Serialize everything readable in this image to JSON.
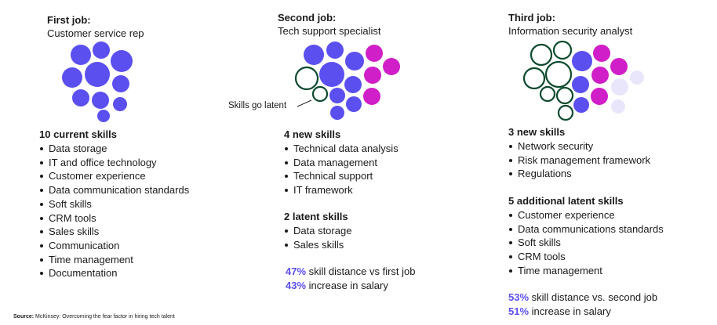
{
  "colors": {
    "skill": "#5b4ff0",
    "new_skill": "#d01ec8",
    "latent_outline": "#0d4a2e",
    "faded": "#e9e6fb",
    "accent_text": "#5b4ff0"
  },
  "jobs": [
    {
      "number": "First job:",
      "role": "Customer service rep",
      "sections": [
        {
          "heading": "10 current skills",
          "items": [
            "Data storage",
            "IT and office technology",
            "Customer experience",
            "Data communication standards",
            "Soft skills",
            "CRM tools",
            "Sales skills",
            "Communication",
            "Time management",
            "Documentation"
          ]
        }
      ],
      "stats": []
    },
    {
      "number": "Second job:",
      "role": "Tech support specialist",
      "latent_label": "Skills go latent",
      "sections": [
        {
          "heading": "4 new skills",
          "items": [
            "Technical data analysis",
            "Data management",
            "Technical support",
            "IT framework"
          ]
        },
        {
          "heading": "2 latent skills",
          "items": [
            "Data storage",
            "Sales skills"
          ]
        }
      ],
      "stats": [
        {
          "value": "47%",
          "text": "skill distance vs first job"
        },
        {
          "value": "43%",
          "text": "increase in salary"
        }
      ]
    },
    {
      "number": "Third job:",
      "role": "Information security analyst",
      "sections": [
        {
          "heading": "3 new skills",
          "items": [
            "Network security",
            "Risk management framework",
            "Regulations"
          ]
        },
        {
          "heading": "5 additional latent skills",
          "items": [
            "Customer experience",
            "Data communications standards",
            "Soft skills",
            "CRM tools",
            "Time management"
          ]
        }
      ],
      "stats": [
        {
          "value": "53%",
          "text": "skill distance vs. second job"
        },
        {
          "value": "51%",
          "text": "increase in salary"
        }
      ]
    }
  ],
  "source": {
    "label": "Source:",
    "text": "McKinsey: Overcoming the fear factor in hiring tech talent"
  }
}
